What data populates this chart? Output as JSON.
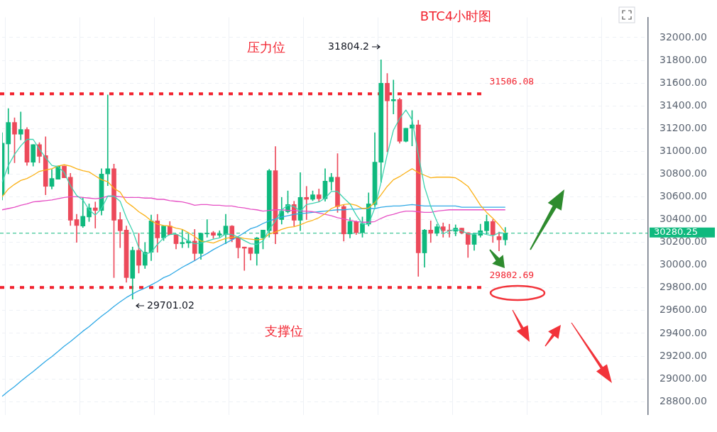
{
  "chart_data": {
    "type": "candlestick",
    "title": "BTC4小时图",
    "categories": [
      null,
      null,
      null,
      null,
      null,
      null,
      null,
      null,
      null,
      null,
      null,
      null,
      null,
      null,
      null,
      null,
      null,
      null,
      null,
      null,
      null,
      null,
      null,
      null,
      null,
      null,
      null,
      null,
      null,
      null,
      null,
      null,
      null,
      null,
      null,
      null,
      null,
      null,
      null,
      null,
      null,
      null,
      null,
      null,
      null,
      null,
      null,
      null,
      null,
      null,
      null,
      null,
      null,
      null,
      null,
      null,
      null,
      null,
      null,
      null,
      null,
      null,
      null,
      null,
      null,
      null,
      null,
      null,
      null,
      null,
      null,
      null,
      null,
      null,
      null,
      null,
      null,
      null,
      null,
      null,
      null,
      null,
      null,
      null,
      null,
      null,
      null,
      null,
      null,
      null,
      null,
      null,
      null,
      null,
      null,
      null,
      null,
      null,
      null,
      null,
      null,
      null,
      null,
      null,
      null
    ],
    "ohlc": [
      [
        30618,
        31163,
        30572,
        31071
      ],
      [
        31065,
        31375,
        30801,
        31254
      ],
      [
        31254,
        31295,
        30899,
        31151
      ],
      [
        31151,
        31346,
        31100,
        31191
      ],
      [
        31191,
        31209,
        30876,
        30905
      ],
      [
        30905,
        31059,
        30870,
        31059
      ],
      [
        31059,
        31077,
        30899,
        30956
      ],
      [
        30962,
        31128,
        30618,
        30692
      ],
      [
        30692,
        30842,
        30669,
        30761
      ],
      [
        30755,
        30870,
        30755,
        30870
      ],
      [
        30870,
        30870,
        30767,
        30767
      ],
      [
        30773,
        30807,
        30348,
        30394
      ],
      [
        30400,
        30446,
        30199,
        30348
      ],
      [
        30343,
        30589,
        30331,
        30429
      ],
      [
        30423,
        30538,
        30383,
        30503
      ],
      [
        30503,
        30555,
        30325,
        30480
      ],
      [
        30480,
        30847,
        30440,
        30801
      ],
      [
        30801,
        31495,
        30698,
        30847
      ],
      [
        30847,
        30887,
        29890,
        30394
      ],
      [
        30400,
        30463,
        30153,
        30302
      ],
      [
        30308,
        30343,
        29849,
        29890
      ],
      [
        29884,
        30159,
        29701.02,
        30130
      ],
      [
        30130,
        30280,
        29930,
        29998
      ],
      [
        29998,
        30199,
        29970,
        30113
      ],
      [
        30113,
        30440,
        30039,
        30389
      ],
      [
        30389,
        30446,
        30113,
        30239
      ],
      [
        30239,
        30343,
        30216,
        30343
      ],
      [
        30343,
        30383,
        30268,
        30268
      ],
      [
        30268,
        30268,
        30142,
        30188
      ],
      [
        30188,
        30308,
        30153,
        30199
      ],
      [
        30194,
        30274,
        30153,
        30211
      ],
      [
        30211,
        30314,
        30039,
        30102
      ],
      [
        30102,
        30280,
        30050,
        30280
      ],
      [
        30274,
        30400,
        30245,
        30280
      ],
      [
        30285,
        30297,
        30234,
        30262
      ],
      [
        30262,
        30302,
        30245,
        30274
      ],
      [
        30268,
        30446,
        30188,
        30343
      ],
      [
        30343,
        30348,
        30205,
        30228
      ],
      [
        30239,
        30239,
        30062,
        30153
      ],
      [
        30159,
        30159,
        29953,
        30148
      ],
      [
        30153,
        30153,
        30044,
        30102
      ],
      [
        30102,
        30245,
        29998,
        30239
      ],
      [
        30239,
        30308,
        30142,
        30308
      ],
      [
        30302,
        30842,
        30245,
        30830
      ],
      [
        30830,
        31042,
        30188,
        30274
      ],
      [
        30400,
        30595,
        30360,
        30474
      ],
      [
        30469,
        30652,
        30457,
        30532
      ],
      [
        30532,
        30561,
        30343,
        30394
      ],
      [
        30394,
        30813,
        30302,
        30595
      ],
      [
        30595,
        30692,
        30400,
        30578
      ],
      [
        30578,
        30652,
        30566,
        30618
      ],
      [
        30618,
        30669,
        30555,
        30583
      ],
      [
        30583,
        30847,
        30561,
        30738
      ],
      [
        30733,
        30807,
        30658,
        30773
      ],
      [
        30773,
        30979,
        30463,
        30515
      ],
      [
        30515,
        30532,
        30211,
        30274
      ],
      [
        30274,
        30417,
        30239,
        30383
      ],
      [
        30383,
        30389,
        30268,
        30285
      ],
      [
        30285,
        30423,
        30245,
        30366
      ],
      [
        30360,
        30635,
        30343,
        30538
      ],
      [
        30532,
        31163,
        30515,
        30905
      ],
      [
        30905,
        31804.2,
        30727,
        31599
      ],
      [
        31599,
        31685,
        30996,
        31444
      ],
      [
        31444,
        31627,
        31329,
        31455
      ],
      [
        31455,
        31467,
        31071,
        31088
      ],
      [
        31088,
        31203,
        31082,
        31203
      ],
      [
        31203,
        31358,
        31048,
        31232
      ],
      [
        31232,
        31272,
        29901,
        30107
      ],
      [
        30107,
        30314,
        29981,
        30308
      ],
      [
        30308,
        30389,
        30199,
        30280
      ],
      [
        30280,
        30360,
        30257,
        30337
      ],
      [
        30337,
        30371,
        30245,
        30302
      ],
      [
        30308,
        30360,
        30245,
        30302
      ],
      [
        30297,
        30354,
        30257,
        30325
      ],
      [
        30325,
        30325,
        30274,
        30285
      ],
      [
        30285,
        30285,
        30067,
        30182
      ],
      [
        30182,
        30280,
        30130,
        30268
      ],
      [
        30262,
        30360,
        30245,
        30302
      ],
      [
        30302,
        30440,
        30274,
        30383
      ],
      [
        30383,
        30400,
        30199,
        30268
      ],
      [
        30251,
        30291,
        30125,
        30222
      ],
      [
        30222,
        30331,
        30176,
        30280.25
      ],
      null,
      null,
      null,
      null,
      null,
      null,
      null,
      null,
      null,
      null,
      null,
      null,
      null,
      null,
      null,
      null,
      null,
      null,
      null,
      null,
      null,
      null,
      null
    ],
    "colors": [
      "#0fb97e",
      "#0fb97e",
      "#ec4a5b",
      "#0fb97e",
      "#ec4a5b",
      "#0fb97e",
      "#ec4a5b",
      "#ec4a5b",
      "#0fb97e",
      "#0fb97e",
      "#ec4a5b",
      "#ec4a5b",
      "#ec4a5b",
      "#0fb97e",
      "#0fb97e",
      "#ec4a5b",
      "#0fb97e",
      "#0fb97e",
      "#ec4a5b",
      "#ec4a5b",
      "#ec4a5b",
      "#0fb97e",
      "#ec4a5b",
      "#0fb97e",
      "#0fb97e",
      "#ec4a5b",
      "#0fb97e",
      "#ec4a5b",
      "#ec4a5b",
      "#0fb97e",
      "#0fb97e",
      "#ec4a5b",
      "#0fb97e",
      "#0fb97e",
      "#ec4a5b",
      "#0fb97e",
      "#0fb97e",
      "#ec4a5b",
      "#ec4a5b",
      "#ec4a5b",
      "#ec4a5b",
      "#0fb97e",
      "#0fb97e",
      "#0fb97e",
      "#ec4a5b",
      "#0fb97e",
      "#0fb97e",
      "#ec4a5b",
      "#0fb97e",
      "#ec4a5b",
      "#0fb97e",
      "#ec4a5b",
      "#0fb97e",
      "#0fb97e",
      "#ec4a5b",
      "#ec4a5b",
      "#0fb97e",
      "#ec4a5b",
      "#0fb97e",
      "#0fb97e",
      "#0fb97e",
      "#0fb97e",
      "#ec4a5b",
      "#0fb97e",
      "#ec4a5b",
      "#0fb97e",
      "#0fb97e",
      "#ec4a5b",
      "#0fb97e",
      "#ec4a5b",
      "#0fb97e",
      "#ec4a5b",
      "#ec4a5b",
      "#0fb97e",
      "#ec4a5b",
      "#ec4a5b",
      "#0fb97e",
      "#0fb97e",
      "#0fb97e",
      "#ec4a5b",
      "#ec4a5b",
      "#0fb97e",
      null,
      null,
      null,
      null,
      null,
      null,
      null,
      null,
      null,
      null,
      null,
      null,
      null,
      null,
      null,
      null,
      null,
      null,
      null,
      null,
      null,
      null,
      null
    ],
    "series": [
      {
        "type": "line",
        "color": "#3ed3b0",
        "values": [
          30727,
          30876,
          30973,
          31048,
          31105,
          31105,
          31019,
          30945,
          30876,
          30864,
          30813,
          30698,
          30612,
          30572,
          30486,
          30440,
          30497,
          30606,
          30606,
          30561,
          30417,
          30302,
          30153,
          30096,
          30113,
          30182,
          30239,
          30268,
          30274,
          30245,
          30211,
          30188,
          30194,
          30211,
          30228,
          30239,
          30274,
          30268,
          30245,
          30216,
          30188,
          30182,
          30211,
          30314,
          30389,
          30486,
          30526,
          30515,
          30474,
          30532,
          30543,
          30555,
          30589,
          30647,
          30647,
          30589,
          30538,
          30440,
          30360,
          30360,
          30503,
          30727,
          30973,
          31186,
          31289,
          31363,
          31277,
          30973,
          30687,
          30515,
          30383,
          30274,
          30302,
          30314,
          30302,
          30274,
          30274,
          30285,
          30268,
          30257,
          30285,
          30280,
          null,
          null,
          null,
          null,
          null,
          null,
          null,
          null,
          null,
          null,
          null,
          null,
          null,
          null,
          null,
          null,
          null,
          null,
          null,
          null,
          null,
          null,
          null
        ]
      },
      {
        "type": "line",
        "color": "#fbb117",
        "values": [
          30601,
          30669,
          30710,
          30744,
          30761,
          30790,
          30824,
          30836,
          30847,
          30870,
          30882,
          30870,
          30847,
          30830,
          30819,
          30784,
          30750,
          30733,
          30675,
          30641,
          30555,
          30515,
          30469,
          30434,
          30389,
          30360,
          30348,
          30343,
          30325,
          30314,
          30285,
          30251,
          30211,
          30205,
          30194,
          30216,
          30234,
          30245,
          30245,
          30234,
          30228,
          30222,
          30228,
          30274,
          30291,
          30314,
          30331,
          30337,
          30354,
          30377,
          30394,
          30417,
          30452,
          30497,
          30520,
          30532,
          30538,
          30526,
          30497,
          30503,
          30549,
          30618,
          30692,
          30750,
          30778,
          30813,
          30847,
          30813,
          30790,
          30767,
          30773,
          30773,
          30773,
          30767,
          30733,
          30692,
          30612,
          30526,
          30463,
          30411,
          30354,
          30285,
          null,
          null,
          null,
          null,
          null,
          null,
          null,
          null,
          null,
          null,
          null,
          null,
          null,
          null,
          null,
          null,
          null,
          null,
          null,
          null,
          null,
          null,
          null
        ]
      },
      {
        "type": "line",
        "color": "#e64fc4",
        "values": [
          30486,
          30497,
          30509,
          30526,
          30538,
          30555,
          30561,
          30566,
          30572,
          30583,
          30595,
          30601,
          30601,
          30595,
          30589,
          30583,
          30589,
          30606,
          30606,
          30601,
          30595,
          30595,
          30595,
          30589,
          30589,
          30578,
          30578,
          30566,
          30561,
          30555,
          30543,
          30526,
          30532,
          30532,
          30526,
          30526,
          30520,
          30520,
          30509,
          30503,
          30492,
          30486,
          30474,
          30480,
          30486,
          30486,
          30480,
          30480,
          30474,
          30474,
          30469,
          30457,
          30446,
          30434,
          30417,
          30406,
          30394,
          30383,
          30377,
          30377,
          30383,
          30411,
          30434,
          30446,
          30463,
          30474,
          30474,
          30469,
          30463,
          30463,
          30474,
          30480,
          30486,
          30486,
          30486,
          30486,
          30486,
          30486,
          30486,
          30486,
          30486,
          30486,
          null,
          null,
          null,
          null,
          null,
          null,
          null,
          null,
          null,
          null,
          null,
          null,
          null,
          null,
          null,
          null,
          null,
          null,
          null,
          null,
          null,
          null,
          null
        ]
      },
      {
        "type": "line",
        "color": "#2fa9e6",
        "values": [
          28846,
          28892,
          28932,
          28978,
          29022,
          29064,
          29110,
          29155,
          29196,
          29241,
          29287,
          29328,
          29373,
          29419,
          29459,
          29505,
          29551,
          29591,
          29637,
          29677,
          29715,
          29746,
          29775,
          29798,
          29826,
          29855,
          29890,
          29912,
          29947,
          29981,
          30010,
          30039,
          30073,
          30102,
          30136,
          30165,
          30194,
          30222,
          30251,
          30285,
          30320,
          30337,
          30366,
          30389,
          30406,
          30423,
          30434,
          30446,
          30452,
          30457,
          30463,
          30469,
          30474,
          30480,
          30486,
          30486,
          30492,
          30492,
          30497,
          30497,
          30497,
          30509,
          30515,
          30520,
          30520,
          30526,
          30532,
          30526,
          30520,
          30520,
          30520,
          30520,
          30520,
          30520,
          30509,
          30509,
          30509,
          30509,
          30509,
          30509,
          30509,
          30509,
          null,
          null,
          null,
          null,
          null,
          null,
          null,
          null,
          null,
          null,
          null,
          null,
          null,
          null,
          null,
          null,
          null,
          null,
          null,
          null,
          null,
          null,
          null
        ]
      }
    ],
    "ylim": [
      28685,
      32178
    ],
    "yticks": [
      {
        "value": 28800,
        "label": "28800.00"
      },
      {
        "value": 29000,
        "label": "29000.00"
      },
      {
        "value": 29200,
        "label": "29200.00"
      },
      {
        "value": 29400,
        "label": "29400.00"
      },
      {
        "value": 29600,
        "label": "29600.00"
      },
      {
        "value": 29800,
        "label": "29800.00"
      },
      {
        "value": 30000,
        "label": "30000.00"
      },
      {
        "value": 30200,
        "label": "30200.00"
      },
      {
        "value": 30400,
        "label": "30400.00"
      },
      {
        "value": 30600,
        "label": "30600.00"
      },
      {
        "value": 30800,
        "label": "30800.00"
      },
      {
        "value": 31000,
        "label": "31000.00"
      },
      {
        "value": 31200,
        "label": "31200.00"
      },
      {
        "value": 31400,
        "label": "31400.00"
      },
      {
        "value": 31600,
        "label": "31600.00"
      },
      {
        "value": 31800,
        "label": "31800.00"
      },
      {
        "value": 32000,
        "label": "32000.00"
      }
    ],
    "ref_lines": [
      {
        "axis": "y",
        "value": 31506.08,
        "label": "31506.08",
        "color": "#f2222e",
        "line_style": "dotted"
      },
      {
        "axis": "y",
        "value": 29802.69,
        "label": "29802.69",
        "color": "#f2222e",
        "line_style": "dotted"
      },
      {
        "axis": "y",
        "value": 30280.25,
        "label": "30280.25",
        "color": "#0fb97e",
        "line_style": "dashed"
      }
    ],
    "annotations": [
      "压力位",
      "支撑位",
      "31804.2",
      "29701.02"
    ],
    "grid": true,
    "tick_labels": "y"
  }
}
